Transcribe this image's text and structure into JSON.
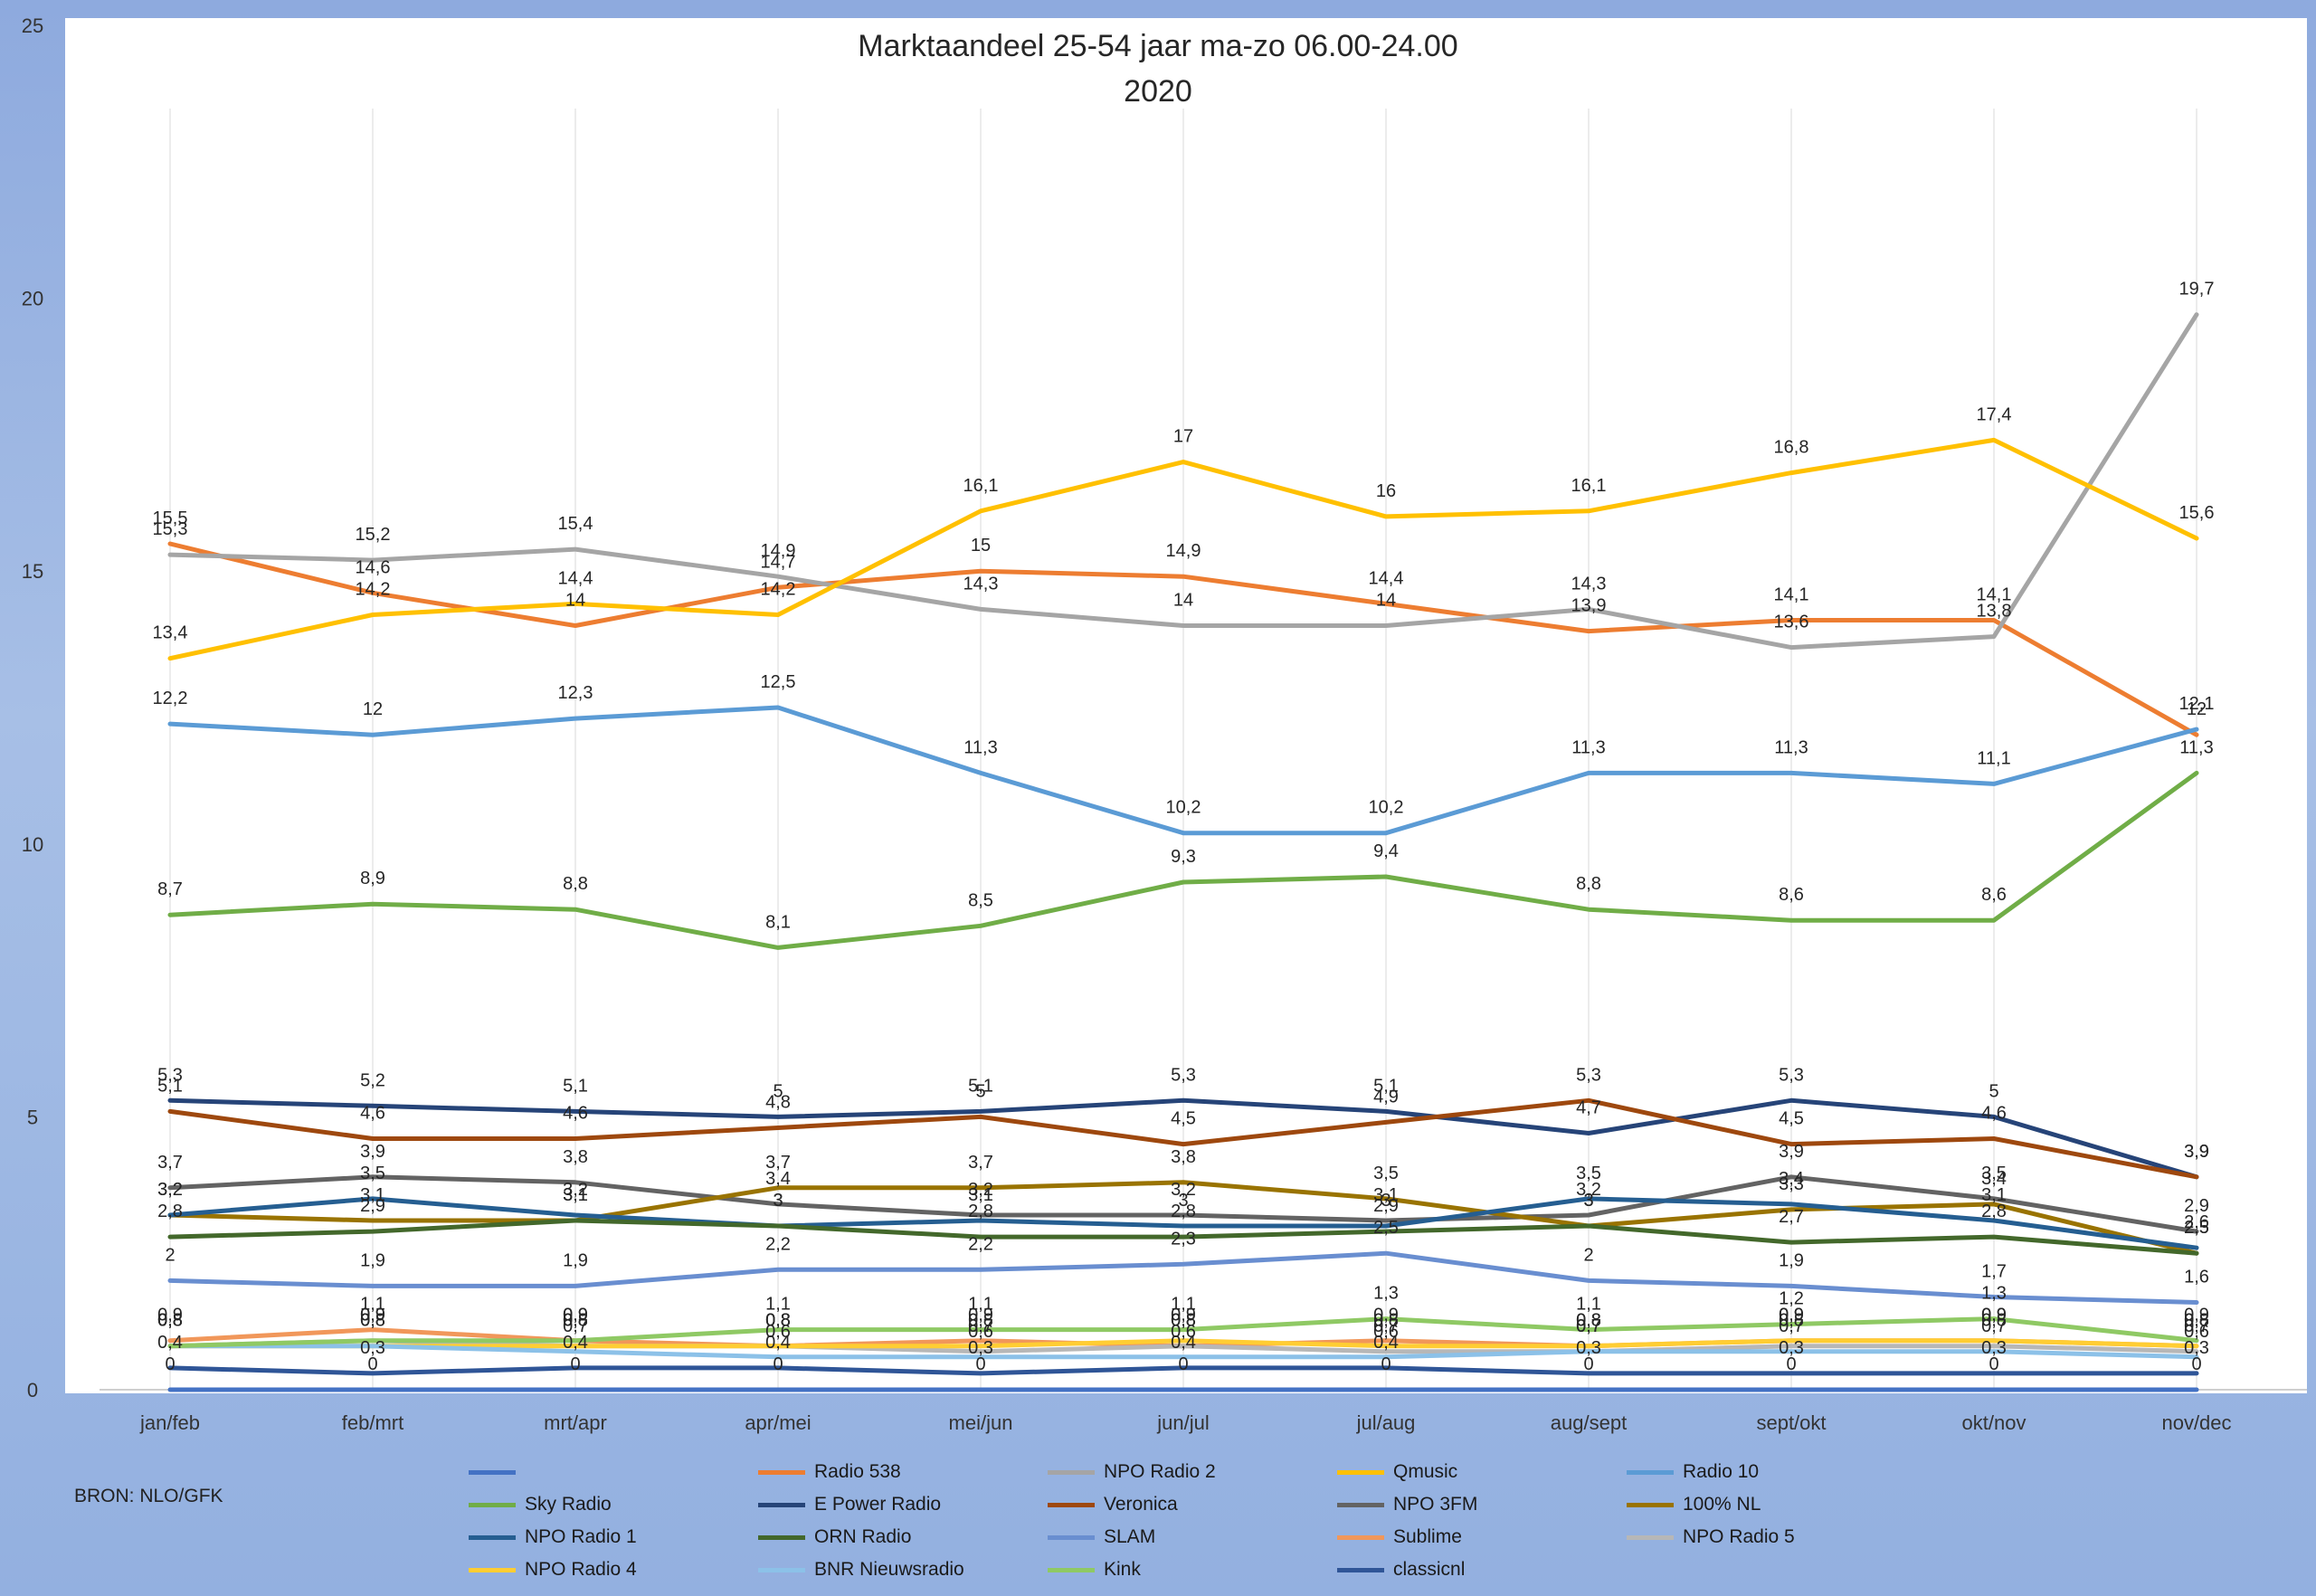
{
  "source_note": "BRON: NLO/GFK",
  "chart_data": {
    "type": "line",
    "title": "Marktaandeel 25-54 jaar ma-zo 06.00-24.00",
    "subtitle": "2020",
    "ylim": [
      0,
      25
    ],
    "yticks": [
      "0",
      "5",
      "10",
      "15",
      "20",
      "25"
    ],
    "grid": "vertical",
    "legend_position": "bottom",
    "categories": [
      "jan/feb",
      "feb/mrt",
      "mrt/apr",
      "apr/mei",
      "mei/jun",
      "jun/jul",
      "jul/aug",
      "aug/sept",
      "sept/okt",
      "okt/nov",
      "nov/dec"
    ],
    "series": [
      {
        "name": "",
        "color": "#4472c4",
        "values": [
          0,
          0,
          0,
          0,
          0,
          0,
          0,
          0,
          0,
          0,
          0
        ],
        "labels": [
          "0",
          "0",
          "0",
          "0",
          "0",
          "0",
          "0",
          "0",
          "0",
          "0",
          "0"
        ]
      },
      {
        "name": "Radio 538",
        "color": "#ed7d31",
        "values": [
          15.5,
          14.6,
          14.0,
          14.7,
          15.0,
          14.9,
          14.4,
          13.9,
          14.1,
          14.1,
          12.0
        ],
        "labels": [
          "15,5",
          "14,6",
          "14",
          "14,7",
          "15",
          "14,9",
          "14,4",
          "13,9",
          "14,1",
          "14,1",
          "12"
        ]
      },
      {
        "name": "NPO Radio 2",
        "color": "#a5a5a5",
        "values": [
          15.3,
          15.2,
          15.4,
          14.9,
          14.3,
          14.0,
          14.0,
          14.3,
          13.6,
          13.8,
          19.7
        ],
        "labels": [
          "15,3",
          "15,2",
          "15,4",
          "14,9",
          "14,3",
          "14",
          "14",
          "14,3",
          "13,6",
          "13,8",
          "19,7"
        ]
      },
      {
        "name": "Qmusic",
        "color": "#ffc000",
        "values": [
          13.4,
          14.2,
          14.4,
          14.2,
          16.1,
          17.0,
          16.0,
          16.1,
          16.8,
          17.4,
          15.6
        ],
        "labels": [
          "13,4",
          "14,2",
          "14,4",
          "14,2",
          "16,1",
          "17",
          "16",
          "16,1",
          "16,8",
          "17,4",
          "15,6"
        ]
      },
      {
        "name": "Radio 10",
        "color": "#5b9bd5",
        "values": [
          12.2,
          12.0,
          12.3,
          12.5,
          11.3,
          10.2,
          10.2,
          11.3,
          11.3,
          11.1,
          12.1
        ],
        "labels": [
          "12,2",
          "12",
          "12,3",
          "12,5",
          "11,3",
          "10,2",
          "10,2",
          "11,3",
          "11,3",
          "11,1",
          "12,1"
        ]
      },
      {
        "name": "Sky Radio",
        "color": "#70ad47",
        "values": [
          8.7,
          8.9,
          8.8,
          8.1,
          8.5,
          9.3,
          9.4,
          8.8,
          8.6,
          8.6,
          11.3
        ],
        "labels": [
          "8,7",
          "8,9",
          "8,8",
          "8,1",
          "8,5",
          "9,3",
          "9,4",
          "8,8",
          "8,6",
          "8,6",
          "11,3"
        ]
      },
      {
        "name": "E Power Radio",
        "color": "#264478",
        "values": [
          5.3,
          5.2,
          5.1,
          5.0,
          5.1,
          5.3,
          5.1,
          4.7,
          5.3,
          5.0,
          3.9
        ],
        "labels": [
          "5,3",
          "5,2",
          "5,1",
          "5",
          "5,1",
          "5,3",
          "5,1",
          "4,7",
          "5,3",
          "5",
          "3,9"
        ]
      },
      {
        "name": "Veronica",
        "color": "#9e480e",
        "values": [
          5.1,
          4.6,
          4.6,
          4.8,
          5.0,
          4.5,
          4.9,
          5.3,
          4.5,
          4.6,
          3.9
        ],
        "labels": [
          "5,1",
          "4,6",
          "4,6",
          "4,8",
          "5",
          "4,5",
          "4,9",
          "5,3",
          "4,5",
          "4,6",
          "3,9"
        ]
      },
      {
        "name": "NPO 3FM",
        "color": "#636363",
        "values": [
          3.7,
          3.9,
          3.8,
          3.4,
          3.2,
          3.2,
          3.1,
          3.2,
          3.9,
          3.5,
          2.9
        ],
        "labels": [
          "3,7",
          "3,9",
          "3,8",
          "3,4",
          "3,2",
          "3,2",
          "3,1",
          "3,2",
          "3,9",
          "3,5",
          "2,9"
        ]
      },
      {
        "name": "100% NL",
        "color": "#997300",
        "values": [
          3.2,
          3.1,
          3.1,
          3.7,
          3.7,
          3.8,
          3.5,
          3.0,
          3.3,
          3.4,
          2.5
        ],
        "labels": [
          "3,2",
          "3,1",
          "3,1",
          "3,7",
          "3,7",
          "3,8",
          "3,5",
          "3",
          "3,3",
          "3,4",
          "2,5"
        ]
      },
      {
        "name": "NPO Radio 1",
        "color": "#255e91",
        "values": [
          3.2,
          3.5,
          3.2,
          3.0,
          3.1,
          3.0,
          3.0,
          3.5,
          3.4,
          3.1,
          2.6
        ],
        "labels": [
          "3,2",
          "3,5",
          "3,2",
          "3",
          "3,1",
          "3",
          "3",
          "3,5",
          "3,4",
          "3,1",
          "2,6"
        ]
      },
      {
        "name": "ORN Radio",
        "color": "#43682b",
        "values": [
          2.8,
          2.9,
          3.1,
          3.0,
          2.8,
          2.8,
          2.9,
          3.0,
          2.7,
          2.8,
          2.5
        ],
        "labels": [
          "2,8",
          "2,9",
          "3,1",
          "3",
          "2,8",
          "2,8",
          "2,9",
          "3",
          "2,7",
          "2,8",
          "2,5"
        ]
      },
      {
        "name": "SLAM",
        "color": "#698ed0",
        "values": [
          2.0,
          1.9,
          1.9,
          2.2,
          2.2,
          2.3,
          2.5,
          2.0,
          1.9,
          1.7,
          1.6
        ],
        "labels": [
          "2",
          "1,9",
          "1,9",
          "2,2",
          "2,2",
          "2,3",
          "2,5",
          "2",
          "1,9",
          "1,7",
          "1,6"
        ]
      },
      {
        "name": "Sublime",
        "color": "#f1975a",
        "values": [
          0.9,
          1.1,
          0.9,
          0.8,
          0.9,
          0.8,
          0.9,
          0.8,
          0.9,
          0.9,
          0.8
        ],
        "labels": [
          "0,9",
          "1,1",
          "0,9",
          "0,8",
          "0,9",
          "0,8",
          "0,9",
          "0,8",
          "0,9",
          "0,9",
          "0,8"
        ]
      },
      {
        "name": "NPO Radio 5",
        "color": "#b7b7b7",
        "values": [
          0.8,
          0.9,
          0.8,
          0.8,
          0.7,
          0.8,
          0.7,
          0.7,
          0.8,
          0.8,
          0.7
        ],
        "labels": [
          "0,8",
          "0,9",
          "0,8",
          "0,8",
          "0,7",
          "0,8",
          "0,7",
          "0,7",
          "0,8",
          "0,8",
          "0,7"
        ]
      },
      {
        "name": "NPO Radio 4",
        "color": "#ffcd33",
        "values": [
          0.8,
          0.8,
          0.8,
          0.8,
          0.8,
          0.9,
          0.8,
          0.8,
          0.9,
          0.9,
          0.8
        ],
        "labels": [
          "0,8",
          "0,8",
          "0,8",
          "0,8",
          "0,8",
          "0,9",
          "0,8",
          "0,8",
          "0,9",
          "0,9",
          "0,8"
        ]
      },
      {
        "name": "BNR Nieuwsradio",
        "color": "#8cc1e8",
        "values": [
          0.8,
          0.8,
          0.7,
          0.6,
          0.6,
          0.6,
          0.6,
          0.7,
          0.7,
          0.7,
          0.6
        ],
        "labels": [
          "0,8",
          "0,8",
          "0,7",
          "0,6",
          "0,6",
          "0,6",
          "0,6",
          "0,7",
          "0,7",
          "0,7",
          "0,6"
        ]
      },
      {
        "name": "Kink",
        "color": "#8fc964",
        "values": [
          0.8,
          0.9,
          0.9,
          1.1,
          1.1,
          1.1,
          1.3,
          1.1,
          1.2,
          1.3,
          0.9
        ],
        "labels": [
          "0,8",
          "0,9",
          "0,9",
          "1,1",
          "1,1",
          "1,1",
          "1,3",
          "1,1",
          "1,2",
          "1,3",
          "0,9"
        ]
      },
      {
        "name": "classicnl",
        "color": "#2f5597",
        "values": [
          0.4,
          0.3,
          0.4,
          0.4,
          0.3,
          0.4,
          0.4,
          0.3,
          0.3,
          0.3,
          0.3
        ],
        "labels": [
          "0,4",
          "0,3",
          "0,4",
          "0,4",
          "0,3",
          "0,4",
          "0,4",
          "0,3",
          "0,3",
          "0,3",
          "0,3"
        ]
      }
    ]
  }
}
